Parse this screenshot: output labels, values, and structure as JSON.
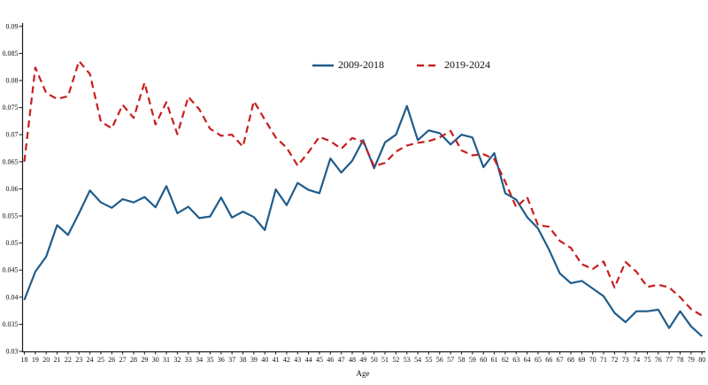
{
  "figure": {
    "background": "#ffffff",
    "axis_color": "#1a1a1a",
    "text_color": "#111111"
  },
  "legend": {
    "items": [
      {
        "label": "2009-2018",
        "color": "#1f5c8b",
        "style": "solid"
      },
      {
        "label": "2019-2024",
        "color": "#c81e1e",
        "style": "dashed"
      }
    ]
  },
  "chart_data": {
    "type": "line",
    "title": "",
    "xlabel": "Age",
    "ylabel": "",
    "grid": false,
    "legend_position": "top-center",
    "xlim": [
      18,
      80
    ],
    "ylim": [
      0.03,
      0.09
    ],
    "ytick_step": 0.005,
    "ytick_labels": [
      "0.03",
      "0.035",
      "0.04",
      "0.045",
      "0.05",
      "0.055",
      "0.06",
      "0.065",
      "0.07",
      "0.075",
      "0.08",
      "0.085",
      "0.09"
    ],
    "x": [
      18,
      19,
      20,
      21,
      22,
      23,
      24,
      25,
      26,
      27,
      28,
      29,
      30,
      31,
      32,
      33,
      34,
      35,
      36,
      37,
      38,
      39,
      40,
      41,
      42,
      43,
      44,
      45,
      46,
      47,
      48,
      49,
      50,
      51,
      52,
      53,
      54,
      55,
      56,
      57,
      58,
      59,
      60,
      61,
      62,
      63,
      64,
      65,
      66,
      67,
      68,
      69,
      70,
      71,
      72,
      73,
      74,
      75,
      76,
      77,
      78,
      79,
      80
    ],
    "series": [
      {
        "name": "2009-2018",
        "color": "#1f5c8b",
        "dash": "solid",
        "values": [
          0.0395,
          0.0447,
          0.0475,
          0.0533,
          0.0515,
          0.0555,
          0.0597,
          0.0575,
          0.0565,
          0.0581,
          0.0575,
          0.0585,
          0.0566,
          0.0605,
          0.0555,
          0.0567,
          0.0546,
          0.0549,
          0.0584,
          0.0547,
          0.0558,
          0.0548,
          0.0524,
          0.0599,
          0.057,
          0.0611,
          0.0598,
          0.0592,
          0.0656,
          0.063,
          0.0652,
          0.069,
          0.0638,
          0.0686,
          0.07,
          0.0753,
          0.069,
          0.0708,
          0.0703,
          0.0682,
          0.07,
          0.0695,
          0.064,
          0.0666,
          0.0592,
          0.058,
          0.0548,
          0.0527,
          0.0488,
          0.0444,
          0.0426,
          0.043,
          0.0416,
          0.0402,
          0.0371,
          0.0354,
          0.0374,
          0.0374,
          0.0377,
          0.0343,
          0.0374,
          0.0346,
          0.0328
        ]
      },
      {
        "name": "2019-2024",
        "color": "#c81e1e",
        "dash": "dashed",
        "values": [
          0.065,
          0.0824,
          0.0777,
          0.0766,
          0.0771,
          0.0836,
          0.0812,
          0.0724,
          0.0712,
          0.0755,
          0.0731,
          0.0796,
          0.0719,
          0.076,
          0.0701,
          0.077,
          0.0747,
          0.0711,
          0.0698,
          0.07,
          0.0678,
          0.0762,
          0.0728,
          0.0695,
          0.0676,
          0.0643,
          0.0668,
          0.0696,
          0.0688,
          0.0674,
          0.0694,
          0.0687,
          0.0642,
          0.0648,
          0.0669,
          0.068,
          0.0685,
          0.0688,
          0.0695,
          0.0707,
          0.0671,
          0.0662,
          0.0664,
          0.0655,
          0.0613,
          0.0566,
          0.0585,
          0.0533,
          0.053,
          0.0504,
          0.0491,
          0.0461,
          0.0452,
          0.0466,
          0.0418,
          0.0465,
          0.0447,
          0.0419,
          0.0423,
          0.0418,
          0.04,
          0.0378,
          0.0366
        ]
      }
    ]
  }
}
